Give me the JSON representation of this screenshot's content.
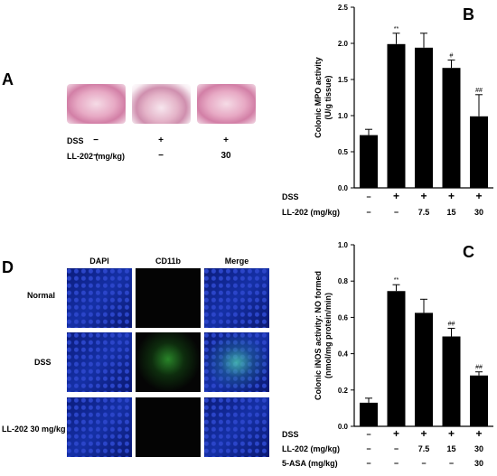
{
  "panel_a": {
    "letter": "A",
    "rows": [
      {
        "label": "DSS",
        "values": [
          "−",
          "+",
          "+"
        ]
      },
      {
        "label": "LL-202 (mg/kg)",
        "values": [
          "−",
          "−",
          "30"
        ]
      }
    ]
  },
  "panel_d": {
    "letter": "D",
    "columns": [
      "DAPI",
      "CD11b",
      "Merge"
    ],
    "rows": [
      "Normal",
      "DSS",
      "LL-202 30 mg/kg"
    ]
  },
  "chart_data": [
    {
      "panel": "B",
      "type": "bar",
      "ylabel": "Colonic MPO activity",
      "ylabel2": "(U/g tissue)",
      "ylim": [
        0,
        2.5
      ],
      "yticks": [
        "0.0",
        "0.5",
        "1.0",
        "1.5",
        "2.0",
        "2.5"
      ],
      "values": [
        0.73,
        1.99,
        1.94,
        1.66,
        0.99
      ],
      "errors": [
        0.08,
        0.15,
        0.2,
        0.11,
        0.3
      ],
      "annotations": [
        "",
        "**",
        "",
        "#",
        "##"
      ],
      "conditions": [
        {
          "label": "DSS",
          "values": [
            "−",
            "+",
            "+",
            "+",
            "+"
          ]
        },
        {
          "label": "LL-202 (mg/kg)",
          "values": [
            "−",
            "−",
            "7.5",
            "15",
            "30"
          ]
        }
      ]
    },
    {
      "panel": "C",
      "type": "bar",
      "ylabel": "Colonic iNOS activity: NO formed",
      "ylabel2": "(nmol/mg protein/min)",
      "ylim": [
        0,
        1.0
      ],
      "yticks": [
        "0.0",
        "0.2",
        "0.4",
        "0.6",
        "0.8",
        "1.0"
      ],
      "values": [
        0.13,
        0.745,
        0.625,
        0.495,
        0.28
      ],
      "errors": [
        0.025,
        0.035,
        0.075,
        0.045,
        0.02
      ],
      "annotations": [
        "",
        "**",
        "",
        "##",
        "##"
      ],
      "conditions": [
        {
          "label": "DSS",
          "values": [
            "−",
            "+",
            "+",
            "+",
            "+"
          ]
        },
        {
          "label": "LL-202 (mg/kg)",
          "values": [
            "−",
            "−",
            "7.5",
            "15",
            "30"
          ]
        },
        {
          "label": "5-ASA (mg/kg)",
          "values": [
            "−",
            "−",
            "−",
            "−",
            "30"
          ]
        }
      ]
    }
  ]
}
